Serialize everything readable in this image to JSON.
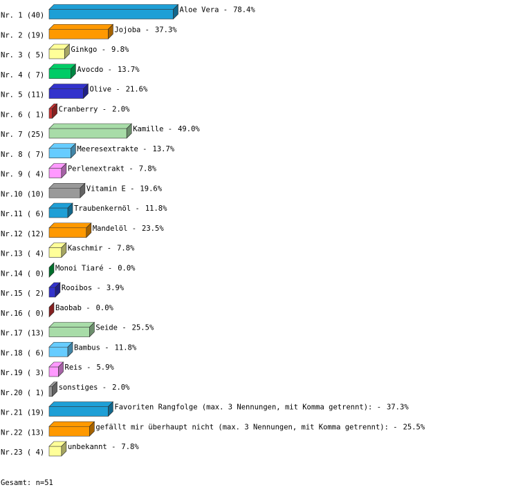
{
  "chart_data": {
    "type": "bar3d-horizontal",
    "row_labels": [
      "Nr. 1 (40)",
      "Nr. 2 (19)",
      "Nr. 3 ( 5)",
      "Nr. 4 ( 7)",
      "Nr. 5 (11)",
      "Nr. 6 ( 1)",
      "Nr. 7 (25)",
      "Nr. 8 ( 7)",
      "Nr. 9 ( 4)",
      "Nr.10 (10)",
      "Nr.11 ( 6)",
      "Nr.12 (12)",
      "Nr.13 ( 4)",
      "Nr.14 ( 0)",
      "Nr.15 ( 2)",
      "Nr.16 ( 0)",
      "Nr.17 (13)",
      "Nr.18 ( 6)",
      "Nr.19 ( 3)",
      "Nr.20 ( 1)",
      "Nr.21 (19)",
      "Nr.22 (13)",
      "Nr.23 ( 4)"
    ],
    "categories": [
      "Aloe Vera -",
      "Jojoba -",
      "Ginkgo -",
      "Avocdo -",
      "Olive -",
      "Cranberry -",
      "Kamille -",
      "Meeresextrakte -",
      "Perlenextrakt -",
      "Vitamin E -",
      "Traubenkernöl -",
      "Mandelöl -",
      "Kaschmir -",
      "Monoi Tiaré -",
      "Rooibos -",
      "Baobab -",
      "Seide -",
      "Bambus -",
      "Reis -",
      "sonstiges -",
      "Favoriten Rangfolge (max. 3 Nennungen, mit Komma getrennt): -",
      "gefällt mir überhaupt nicht (max. 3 Nennungen, mit Komma getrennt): -",
      "unbekannt -"
    ],
    "values": [
      78.4,
      37.3,
      9.8,
      13.7,
      21.6,
      2.0,
      49.0,
      13.7,
      7.8,
      19.6,
      11.8,
      23.5,
      7.8,
      0.0,
      3.9,
      0.0,
      25.5,
      11.8,
      5.9,
      2.0,
      37.3,
      25.5,
      7.8
    ],
    "value_labels": [
      "78.4%",
      "37.3%",
      "9.8%",
      "13.7%",
      "21.6%",
      "2.0%",
      "49.0%",
      "13.7%",
      "7.8%",
      "19.6%",
      "11.8%",
      "23.5%",
      "7.8%",
      "0.0%",
      "3.9%",
      "0.0%",
      "25.5%",
      "11.8%",
      "5.9%",
      "2.0%",
      "37.3%",
      "25.5%",
      "7.8%"
    ],
    "colors": [
      "#1e9fd6",
      "#ff9900",
      "#ffff99",
      "#00cc66",
      "#3333cc",
      "#cc3333",
      "#a8dca8",
      "#66ccff",
      "#ff99ff",
      "#999999",
      "#1e9fd6",
      "#ff9900",
      "#ffff99",
      "#00aa44",
      "#3333cc",
      "#cc3333",
      "#a8dca8",
      "#66ccff",
      "#ff99ff",
      "#999999",
      "#1e9fd6",
      "#ff9900",
      "#ffff99"
    ],
    "footer": "Gesamt: n=51"
  }
}
